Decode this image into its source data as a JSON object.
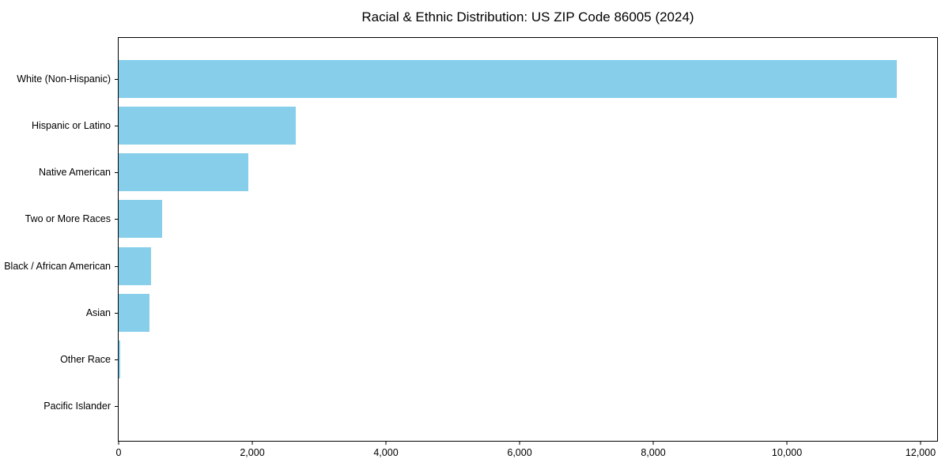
{
  "chart_data": {
    "type": "bar",
    "orientation": "horizontal",
    "title": "Racial & Ethnic Distribution: US ZIP Code 86005 (2024)",
    "categories": [
      "White (Non-Hispanic)",
      "Hispanic or Latino",
      "Native American",
      "Two or More Races",
      "Black / African American",
      "Asian",
      "Other Race",
      "Pacific Islander"
    ],
    "values": [
      11650,
      2650,
      1940,
      655,
      490,
      465,
      20,
      0
    ],
    "bar_color": "#87CEEB",
    "xlabel": "",
    "ylabel": "",
    "xlim": [
      0,
      12248
    ],
    "x_ticks": [
      0,
      2000,
      4000,
      6000,
      8000,
      10000,
      12000
    ],
    "x_tick_labels": [
      "0",
      "2,000",
      "4,000",
      "6,000",
      "8,000",
      "10,000",
      "12,000"
    ],
    "grid": false,
    "legend": null,
    "frame_color": "#000000",
    "background_color": "#ffffff"
  }
}
